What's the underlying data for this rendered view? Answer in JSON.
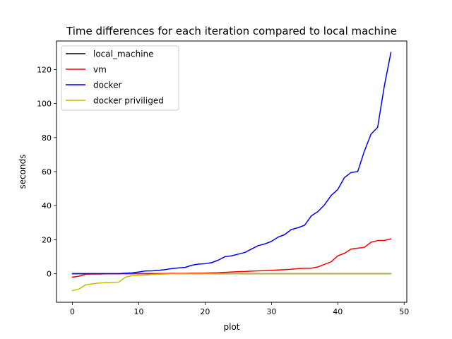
{
  "chart_data": {
    "type": "line",
    "title": "Time differences for each iteration compared to local machine",
    "xlabel": "plot",
    "ylabel": "seconds",
    "xlim": [
      -2.4,
      50.4
    ],
    "ylim": [
      -16.8,
      136.8
    ],
    "xticks": [
      0,
      10,
      20,
      30,
      40,
      50
    ],
    "yticks": [
      0,
      20,
      40,
      60,
      80,
      100,
      120
    ],
    "grid": false,
    "legend_position": "top-left",
    "x": [
      0,
      1,
      2,
      3,
      4,
      5,
      6,
      7,
      8,
      9,
      10,
      11,
      12,
      13,
      14,
      15,
      16,
      17,
      18,
      19,
      20,
      21,
      22,
      23,
      24,
      25,
      26,
      27,
      28,
      29,
      30,
      31,
      32,
      33,
      34,
      35,
      36,
      37,
      38,
      39,
      40,
      41,
      42,
      43,
      44,
      45,
      46,
      47,
      48
    ],
    "series": [
      {
        "name": "local_machine",
        "color": "#000000",
        "values": [
          0,
          0,
          0,
          0,
          0,
          0,
          0,
          0,
          0,
          0,
          0,
          0,
          0,
          0,
          0,
          0,
          0,
          0,
          0,
          0,
          0,
          0,
          0,
          0,
          0,
          0,
          0,
          0,
          0,
          0,
          0,
          0,
          0,
          0,
          0,
          0,
          0,
          0,
          0,
          0,
          0,
          0,
          0,
          0,
          0,
          0,
          0,
          0,
          0
        ]
      },
      {
        "name": "vm",
        "color": "#ff0000",
        "values": [
          -2,
          -1.5,
          -0.3,
          -0.2,
          -0.2,
          -0.1,
          -0.1,
          0,
          0,
          0,
          0,
          0,
          0.1,
          0.1,
          0.1,
          0.2,
          0.2,
          0.2,
          0.3,
          0.3,
          0.4,
          0.5,
          0.6,
          0.8,
          1,
          1.2,
          1.3,
          1.5,
          1.7,
          1.8,
          2,
          2.2,
          2.4,
          2.6,
          3,
          3.2,
          3.2,
          4,
          5.5,
          7,
          10.5,
          12,
          14.5,
          15,
          15.5,
          18.5,
          19.5,
          19.5,
          20.5
        ]
      },
      {
        "name": "docker",
        "color": "#0000ff",
        "values": [
          0,
          0,
          0,
          0,
          0,
          0,
          0,
          0,
          0.3,
          0.5,
          1,
          1.6,
          1.7,
          2,
          2.4,
          3,
          3.4,
          3.7,
          5,
          5.6,
          5.9,
          6.5,
          8,
          10,
          10.5,
          11.5,
          12.5,
          14.5,
          16.5,
          17.5,
          19,
          21.5,
          23,
          26,
          27,
          28.5,
          34,
          36.5,
          40.5,
          46,
          49.5,
          56.5,
          59.5,
          60,
          72,
          82,
          86,
          110,
          130
        ]
      },
      {
        "name": "docker priviliged",
        "color": "#bfbf00",
        "values": [
          -10,
          -9,
          -6.5,
          -6,
          -5.5,
          -5.3,
          -5.1,
          -4.9,
          -2,
          -1.2,
          -1,
          -0.8,
          -0.5,
          -0.3,
          -0.2,
          -0.1,
          0,
          0,
          0,
          0,
          0,
          0,
          0,
          0,
          0,
          0,
          0,
          0,
          0,
          0,
          0,
          0,
          0,
          0,
          0,
          0,
          0,
          0,
          0,
          0,
          0,
          0,
          0,
          0,
          0,
          0,
          0,
          0,
          0
        ]
      }
    ]
  }
}
